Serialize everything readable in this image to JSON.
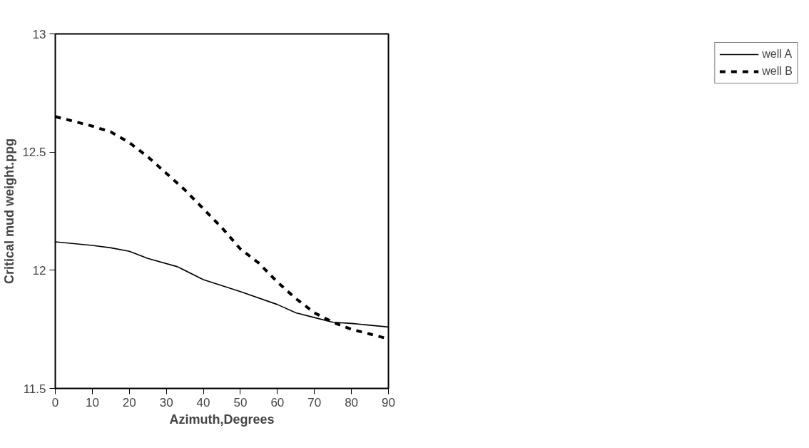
{
  "chart_data": {
    "type": "line",
    "xlabel": "Azimuth,Degrees",
    "ylabel": "Critical mud weight.ppg",
    "xlim": [
      0,
      90
    ],
    "xticks": [
      0,
      10,
      20,
      30,
      40,
      50,
      60,
      70,
      80,
      90
    ],
    "ylim": [
      11.5,
      13
    ],
    "yticks": [
      11.5,
      12.5,
      13,
      {
        "value": 12,
        "label": "12"
      }
    ],
    "grid": false,
    "legend": "right",
    "marker": "none",
    "series": [
      {
        "name": "well A",
        "color": "#000000",
        "line_style": "solid",
        "x": [
          0,
          10,
          15,
          20,
          25,
          33,
          40,
          50,
          60,
          65,
          70,
          75,
          80,
          90
        ],
        "values": [
          12.12,
          12.105,
          12.095,
          12.08,
          12.05,
          12.015,
          11.96,
          11.91,
          11.855,
          11.82,
          11.8,
          11.78,
          11.775,
          11.76
        ]
      },
      {
        "name": "well B",
        "color": "#000000",
        "line_style": "dashed",
        "x": [
          0,
          10,
          15,
          20,
          25,
          30,
          35,
          40,
          45,
          50,
          55,
          60,
          65,
          70,
          75,
          80,
          85,
          90
        ],
        "values": [
          12.65,
          12.61,
          12.585,
          12.54,
          12.48,
          12.41,
          12.34,
          12.26,
          12.18,
          12.09,
          12.03,
          11.95,
          11.88,
          11.82,
          11.78,
          11.75,
          11.73,
          11.71
        ]
      }
    ]
  }
}
